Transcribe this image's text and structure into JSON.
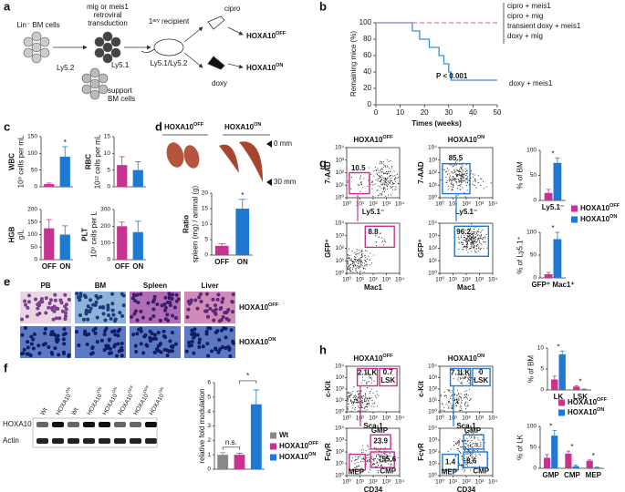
{
  "a": {
    "letter": "a",
    "lin": "Lin⁻ BM cells",
    "ly52": "Ly5.2",
    "transduction": [
      "mig or meis1",
      "retroviral",
      "transduction"
    ],
    "ly51": "Ly5.1",
    "support": [
      "support",
      "BM cells"
    ],
    "recipient": "1ᵃʳʸ recipient",
    "recipient_type": "Ly5.1/Ly5.2",
    "cipro": "cipro",
    "doxy": "doxy",
    "off": {
      "text": "HOXA10",
      "sup": "OFF"
    },
    "on": {
      "text": "HOXA10",
      "sup": "ON"
    }
  },
  "b": {
    "letter": "b",
    "chart": {
      "type": "line",
      "xlabel": "Times (weeks)",
      "ylabel": "Remaining mice (%)",
      "xlim": [
        0,
        50
      ],
      "xticks": [
        0,
        10,
        20,
        30,
        40,
        50
      ],
      "ylim": [
        0,
        100
      ],
      "yticks": [
        0,
        20,
        40,
        60,
        80,
        100
      ],
      "series": [
        {
          "name": "doxy + meis1",
          "color": "#3a8fdb",
          "x": [
            0,
            15,
            15,
            18,
            18,
            22,
            22,
            26,
            26,
            28,
            28,
            30,
            30,
            31,
            31,
            50
          ],
          "values": [
            100,
            100,
            90,
            90,
            80,
            80,
            70,
            70,
            60,
            60,
            50,
            50,
            40,
            40,
            30,
            30
          ]
        },
        {
          "color": "#d77bbd",
          "dash": true,
          "x": [
            0,
            50
          ],
          "values": [
            100,
            100
          ]
        }
      ],
      "legend_group": [
        "cipro + meis1",
        "cipro + mig",
        "transient doxy + meis1",
        "doxy + mig"
      ],
      "pvalue": "P < 0.001"
    }
  },
  "c": {
    "letter": "c",
    "charts": [
      {
        "ylabel": [
          "WBC",
          "10⁹ cells per mL"
        ],
        "ylim": [
          0,
          150
        ],
        "yticks": [
          0,
          50,
          100,
          150
        ],
        "categories": [
          null,
          null
        ],
        "values": [
          8,
          90
        ],
        "errors": [
          3,
          30
        ],
        "colors": [
          "#c6328f",
          "#1f78d1"
        ],
        "stars": [
          "*"
        ]
      },
      {
        "ylabel": [
          "RBC",
          "10¹² cells per mL"
        ],
        "ylim": [
          0,
          15
        ],
        "yticks": [
          0,
          5,
          10,
          15
        ],
        "categories": [
          null,
          null
        ],
        "values": [
          6.5,
          5
        ],
        "errors": [
          2.5,
          2.5
        ],
        "colors": [
          "#c6328f",
          "#1f78d1"
        ]
      },
      {
        "ylabel": [
          "HGB",
          "g/L"
        ],
        "ylim": [
          0,
          200
        ],
        "yticks": [
          0,
          50,
          100,
          150,
          200
        ],
        "categories": [
          "OFF",
          "ON"
        ],
        "values": [
          125,
          100
        ],
        "errors": [
          35,
          35
        ],
        "colors": [
          "#c6328f",
          "#1f78d1"
        ]
      },
      {
        "ylabel": [
          "PLT",
          "10⁹ cells per L"
        ],
        "ylim": [
          0,
          300
        ],
        "yticks": [
          0,
          100,
          200,
          300
        ],
        "categories": [
          "OFF",
          "ON"
        ],
        "values": [
          200,
          165
        ],
        "errors": [
          25,
          65
        ],
        "colors": [
          "#c6328f",
          "#1f78d1"
        ]
      }
    ]
  },
  "d": {
    "letter": "d",
    "off": {
      "text": "HOXA10",
      "sup": "OFF"
    },
    "on": {
      "text": "HOXA10",
      "sup": "ON"
    },
    "top": "0 mm",
    "bottom": "30 mm",
    "chart": {
      "ylabel": [
        "Ratio",
        "spleen (mg) / animal (g)"
      ],
      "ylim": [
        0,
        20
      ],
      "yticks": [
        0,
        5,
        10,
        15,
        20
      ],
      "categories": [
        "OFF",
        "ON"
      ],
      "values": [
        3,
        15
      ],
      "errors": [
        0.7,
        3
      ],
      "colors": [
        "#c6328f",
        "#1f78d1"
      ],
      "stars": [
        "*"
      ]
    }
  },
  "e": {
    "letter": "e",
    "columns": [
      "PB",
      "BM",
      "Spleen",
      "Liver"
    ],
    "rows": [
      {
        "text": "HOXA10",
        "sup": "OFF"
      },
      {
        "text": "HOXA10",
        "sup": "ON"
      }
    ]
  },
  "f": {
    "letter": "f",
    "lanes": [
      {
        "text": "Wt"
      },
      {
        "text": "HOXA10",
        "sup": "ON"
      },
      {
        "text": "Wt"
      },
      {
        "text": "HOXA10",
        "sup": "ON"
      },
      {
        "text": "HOXA10",
        "sup": "ON"
      },
      {
        "text": "HOXA10",
        "sup": "OFF"
      },
      {
        "text": "HOXA10",
        "sup": "OFF"
      },
      {
        "text": "HOXA10",
        "sup": "ON"
      }
    ],
    "rows": [
      "HOXA10",
      "Actin"
    ],
    "chart": {
      "ylabel": [
        "relative fold modulation"
      ],
      "ylim": [
        0,
        6
      ],
      "yticks": [
        0,
        1,
        2,
        3,
        4,
        5,
        6
      ],
      "categories": [
        null,
        null,
        null
      ],
      "values": [
        1,
        1,
        4.5
      ],
      "errors": [
        0.15,
        0.1,
        1
      ],
      "colors": [
        "#888888",
        "#c6328f",
        "#1f78d1"
      ],
      "brackets": [
        "n.s.",
        "*"
      ]
    },
    "legend": [
      {
        "text": "Wt",
        "color": "#888888"
      },
      {
        "text": "HOXA10",
        "sup": "OFF",
        "color": "#c6328f"
      },
      {
        "text": "HOXA10",
        "sup": "ON",
        "color": "#1f78d1"
      }
    ]
  },
  "g": {
    "letter": "g",
    "flow_ticks": [
      {
        "value": 0,
        "label": "10⁰"
      },
      {
        "value": 1,
        "label": "10¹"
      },
      {
        "value": 2,
        "label": "10²"
      },
      {
        "value": 3,
        "label": "10³"
      },
      {
        "value": 4,
        "label": "10⁴"
      }
    ],
    "plots": [
      {
        "title": {
          "text": "HOXA10",
          "sup": "OFF"
        },
        "ylabel": "7-AAD",
        "xlabel": "Ly5.1⁻",
        "gates": [
          {
            "value": 10.5
          }
        ]
      },
      {
        "title": {
          "text": "HOXA10",
          "sup": "ON"
        },
        "ylabel": "7-AAD",
        "xlabel": "Ly5.1⁻",
        "gates": [
          {
            "value": 85.5
          }
        ]
      },
      {
        "ylabel": "GFP⁺",
        "xlabel": "Mac1",
        "gates": [
          {
            "value": 8.8
          }
        ]
      },
      {
        "ylabel": "GFP⁺",
        "xlabel": "Mac1",
        "gates": [
          {
            "value": 96.2
          }
        ]
      }
    ],
    "charts": [
      {
        "ylabel": [
          "% of BM"
        ],
        "ylim": [
          0,
          100
        ],
        "yticks": [
          0,
          50,
          100
        ],
        "categories": [
          "Ly5.1⁻"
        ],
        "series": [
          {
            "color": "#c6328f",
            "values": [
              15
            ],
            "errors": [
              7
            ]
          },
          {
            "color": "#1f78d1",
            "values": [
              75
            ],
            "errors": [
              10
            ]
          }
        ],
        "stars": [
          "*"
        ]
      },
      {
        "ylabel": [
          "% of Ly5.1⁺"
        ],
        "ylim": [
          0,
          100
        ],
        "yticks": [
          0,
          50,
          100
        ],
        "categories": [
          "GFP⁺ Mac1⁺"
        ],
        "series": [
          {
            "color": "#c6328f",
            "values": [
              8
            ],
            "errors": [
              4
            ]
          },
          {
            "color": "#1f78d1",
            "values": [
              85
            ],
            "errors": [
              15
            ]
          }
        ],
        "stars": [
          "*"
        ]
      }
    ],
    "legend": [
      {
        "text": "HOXA10",
        "sup": "OFF",
        "color": "#c6328f"
      },
      {
        "text": "HOXA10",
        "sup": "ON",
        "color": "#1f78d1"
      }
    ]
  },
  "h": {
    "letter": "h",
    "flow_ticks": [
      {
        "value": 0,
        "label": "10⁰"
      },
      {
        "value": 1,
        "label": "10¹"
      },
      {
        "value": 2,
        "label": "10²"
      },
      {
        "value": 3,
        "label": "10³"
      },
      {
        "value": 4,
        "label": "10⁴"
      }
    ],
    "plots": [
      {
        "title": {
          "text": "HOXA10",
          "sup": "OFF"
        },
        "ylabel": "c-Kit",
        "xlabel": "Sca-1",
        "gates": [
          {
            "value": 2.1,
            "label": "LK"
          },
          {
            "value": 0.7,
            "label": "LSK"
          }
        ]
      },
      {
        "title": {
          "text": "HOXA10",
          "sup": "ON"
        },
        "ylabel": "c-Kit",
        "xlabel": "Sca-1",
        "gates": [
          {
            "value": 7.1,
            "label": "LK"
          },
          {
            "value": 0,
            "label": "LSK"
          }
        ]
      },
      {
        "ylabel": "FcγR",
        "xlabel": "CD34",
        "gates": [
          {
            "label": "GMP",
            "value": 23.9
          },
          {
            "label": "CMP",
            "value": 55.6
          },
          {
            "label": "MEP"
          }
        ]
      },
      {
        "ylabel": "FcγR",
        "xlabel": "CD34",
        "gates": [
          {
            "label": "GMP"
          },
          {
            "label": "CMP",
            "value": 8.6
          },
          {
            "label": "MEP",
            "value": 1.4
          }
        ]
      }
    ],
    "charts": [
      {
        "ylabel": [
          "% of BM"
        ],
        "ylim": [
          0,
          10
        ],
        "yticks": [
          0,
          5,
          10
        ],
        "categories": [
          "LK",
          "LSK"
        ],
        "series": [
          {
            "color": "#c6328f",
            "values": [
              2.5,
              0.8
            ],
            "errors": [
              0.8,
              0.2
            ]
          },
          {
            "color": "#1f78d1",
            "values": [
              8.5,
              0.15
            ],
            "errors": [
              0.8,
              0.1
            ]
          }
        ],
        "stars": [
          "*",
          "*"
        ]
      },
      {
        "ylabel": [
          "% of LK"
        ],
        "ylim": [
          0,
          100
        ],
        "yticks": [
          0,
          50,
          100
        ],
        "categories": [
          "GMP",
          "CMP",
          "MEP"
        ],
        "series": [
          {
            "color": "#c6328f",
            "values": [
              25,
              35,
              18
            ],
            "errors": [
              8,
              6,
              2
            ]
          },
          {
            "color": "#1f78d1",
            "values": [
              78,
              5,
              2
            ],
            "errors": [
              12,
              3,
              1
            ]
          }
        ],
        "stars": [
          "*",
          "*",
          "*"
        ]
      }
    ],
    "legend": [
      {
        "text": "HOXA10",
        "sup": "OFF",
        "color": "#c6328f"
      },
      {
        "text": "HOXA10",
        "sup": "ON",
        "color": "#1f78d1"
      }
    ]
  }
}
